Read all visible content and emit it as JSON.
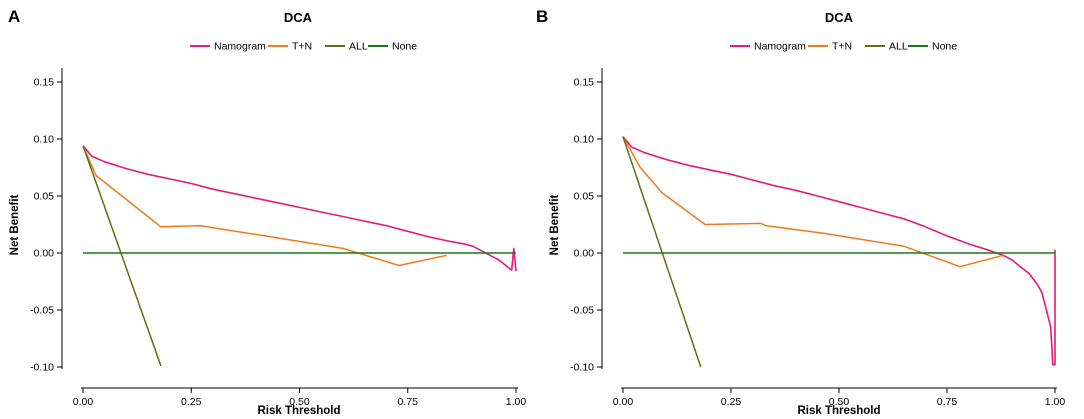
{
  "chart_data": [
    {
      "panel": "A",
      "type": "line",
      "title": "DCA",
      "xlabel": "Risk Threshold",
      "ylabel": "Net Benefit",
      "xlim": [
        0,
        1
      ],
      "ylim": [
        -0.1,
        0.15
      ],
      "xticks": [
        "0.00",
        "0.25",
        "0.50",
        "0.75",
        "1.00"
      ],
      "yticks": [
        "-0.10",
        "-0.05",
        "0.00",
        "0.05",
        "0.10",
        "0.15"
      ],
      "legend_position": "top",
      "series": [
        {
          "name": "Namogram",
          "color": "#e6197d",
          "x": [
            0.0,
            0.02,
            0.05,
            0.1,
            0.15,
            0.2,
            0.25,
            0.3,
            0.35,
            0.4,
            0.45,
            0.5,
            0.55,
            0.6,
            0.65,
            0.7,
            0.75,
            0.8,
            0.85,
            0.88,
            0.9,
            0.92,
            0.94,
            0.96,
            0.98,
            0.99,
            0.995,
            1.0
          ],
          "y": [
            0.094,
            0.085,
            0.08,
            0.074,
            0.069,
            0.065,
            0.061,
            0.056,
            0.052,
            0.048,
            0.044,
            0.04,
            0.036,
            0.032,
            0.028,
            0.024,
            0.019,
            0.014,
            0.01,
            0.008,
            0.006,
            0.002,
            -0.002,
            -0.006,
            -0.012,
            -0.015,
            0.004,
            -0.016
          ]
        },
        {
          "name": "T+N",
          "color": "#f07a1a",
          "x": [
            0.0,
            0.03,
            0.18,
            0.27,
            0.42,
            0.6,
            0.73,
            0.84
          ],
          "y": [
            0.094,
            0.068,
            0.023,
            0.024,
            0.015,
            0.004,
            -0.011,
            -0.002
          ]
        },
        {
          "name": "ALL",
          "color": "#6b6b12",
          "x": [
            0.0,
            0.18
          ],
          "y": [
            0.094,
            -0.099
          ]
        },
        {
          "name": "None",
          "color": "#1a7a1a",
          "x": [
            0.0,
            1.0
          ],
          "y": [
            0.0,
            0.0
          ]
        }
      ]
    },
    {
      "panel": "B",
      "type": "line",
      "title": "DCA",
      "xlabel": "Risk Threshold",
      "ylabel": "Net Benefit",
      "xlim": [
        0,
        1
      ],
      "ylim": [
        -0.1,
        0.15
      ],
      "xticks": [
        "0.00",
        "0.25",
        "0.50",
        "0.75",
        "1.00"
      ],
      "yticks": [
        "-0.10",
        "-0.05",
        "0.00",
        "0.05",
        "0.10",
        "0.15"
      ],
      "legend_position": "top",
      "series": [
        {
          "name": "Namogram",
          "color": "#e6197d",
          "x": [
            0.0,
            0.02,
            0.05,
            0.1,
            0.15,
            0.2,
            0.25,
            0.3,
            0.35,
            0.4,
            0.45,
            0.5,
            0.55,
            0.6,
            0.65,
            0.7,
            0.75,
            0.8,
            0.85,
            0.88,
            0.9,
            0.92,
            0.94,
            0.96,
            0.97,
            0.98,
            0.99,
            0.995,
            1.0,
            1.0
          ],
          "y": [
            0.102,
            0.093,
            0.088,
            0.082,
            0.077,
            0.073,
            0.069,
            0.064,
            0.059,
            0.055,
            0.05,
            0.045,
            0.04,
            0.035,
            0.03,
            0.023,
            0.015,
            0.008,
            0.002,
            -0.002,
            -0.006,
            -0.012,
            -0.018,
            -0.028,
            -0.035,
            -0.05,
            -0.065,
            -0.098,
            -0.098,
            0.003
          ]
        },
        {
          "name": "T+N",
          "color": "#f07a1a",
          "x": [
            0.0,
            0.04,
            0.09,
            0.19,
            0.32,
            0.33,
            0.47,
            0.65,
            0.78,
            0.88
          ],
          "y": [
            0.102,
            0.075,
            0.053,
            0.025,
            0.026,
            0.024,
            0.017,
            0.006,
            -0.012,
            -0.002
          ]
        },
        {
          "name": "ALL",
          "color": "#6b6b12",
          "x": [
            0.0,
            0.18
          ],
          "y": [
            0.102,
            -0.1
          ]
        },
        {
          "name": "None",
          "color": "#1a7a1a",
          "x": [
            0.0,
            1.0
          ],
          "y": [
            0.0,
            0.0
          ]
        }
      ]
    }
  ]
}
